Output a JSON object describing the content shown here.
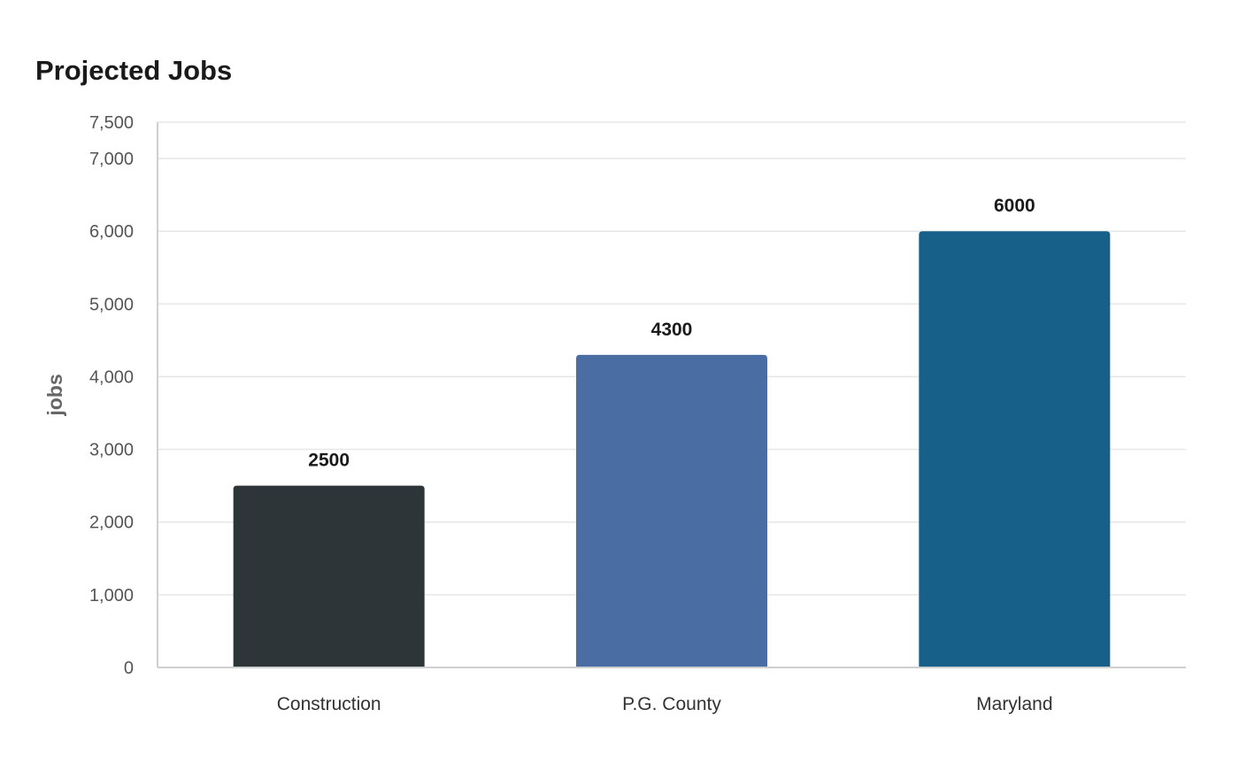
{
  "chart_data": {
    "type": "bar",
    "title": "Projected Jobs",
    "xlabel": "",
    "ylabel": "jobs",
    "categories": [
      "Construction",
      "P.G. County",
      "Maryland"
    ],
    "values": [
      2500,
      4300,
      6000
    ],
    "data_labels": [
      "2500",
      "4300",
      "6000"
    ],
    "colors": [
      "#2e3538",
      "#4a6ea3",
      "#176089"
    ],
    "ylim": [
      0,
      7500
    ],
    "yticks": [
      0,
      1000,
      2000,
      3000,
      4000,
      5000,
      6000,
      7000,
      7500
    ],
    "ytick_labels": [
      "0",
      "1,000",
      "2,000",
      "3,000",
      "4,000",
      "5,000",
      "6,000",
      "7,000",
      "7,500"
    ],
    "grid": true,
    "legend": "none"
  }
}
